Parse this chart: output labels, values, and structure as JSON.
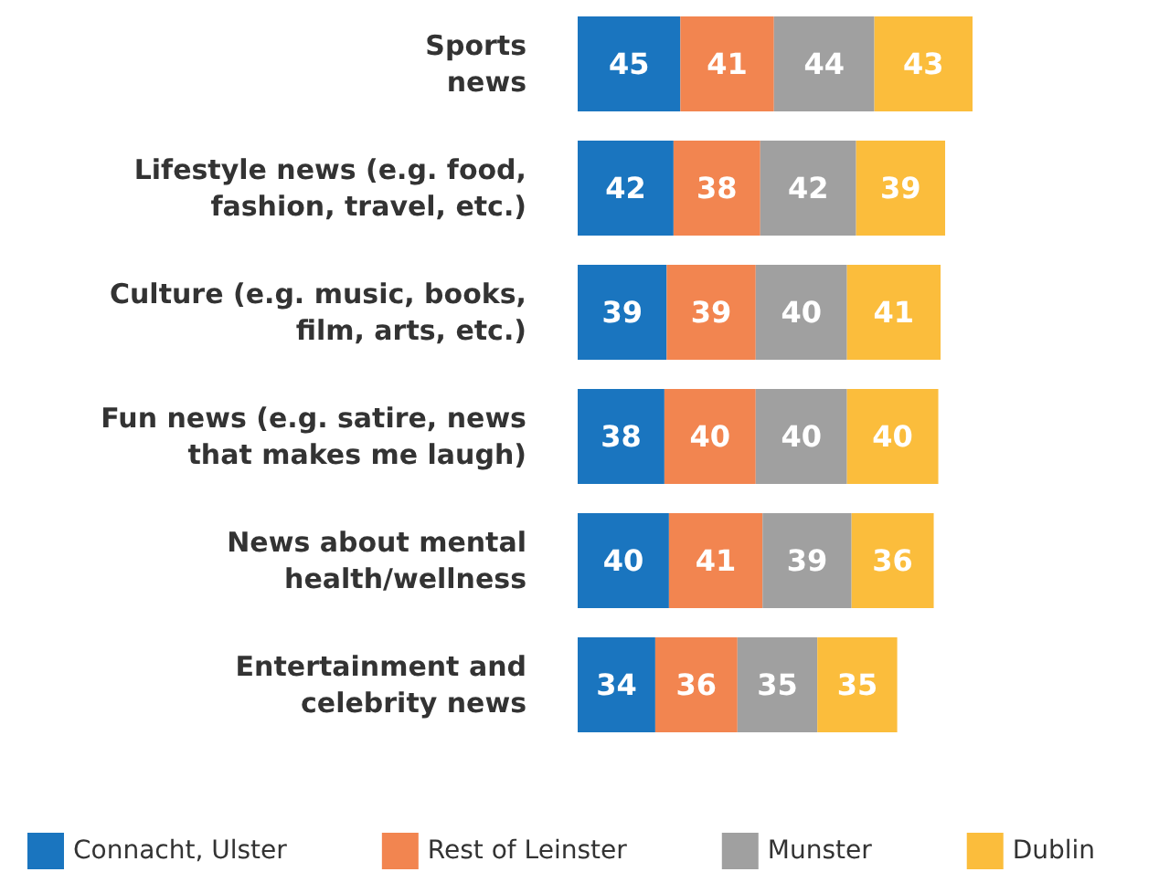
{
  "chart_data": {
    "type": "bar",
    "orientation": "horizontal",
    "stacked": true,
    "data_labels": true,
    "legend": "bottom",
    "categories": [
      "Sports\nnews",
      "Lifestyle news (e.g. food,\nfashion, travel, etc.)",
      "Culture (e.g. music, books,\nfilm, arts, etc.)",
      "Fun news (e.g. satire, news\nthat makes me laugh)",
      "News about mental\nhealth/wellness",
      "Entertainment and\ncelebrity news"
    ],
    "series": [
      {
        "name": "Connacht, Ulster",
        "color": "#1a75bf",
        "values": [
          45,
          42,
          39,
          38,
          40,
          34
        ]
      },
      {
        "name": "Rest of Leinster",
        "color": "#f28550",
        "values": [
          41,
          38,
          39,
          40,
          41,
          36
        ]
      },
      {
        "name": "Munster",
        "color": "#a0a0a0",
        "values": [
          44,
          42,
          40,
          40,
          39,
          35
        ]
      },
      {
        "name": "Dublin",
        "color": "#fbbd3c",
        "values": [
          43,
          39,
          41,
          40,
          36,
          35
        ]
      }
    ]
  }
}
